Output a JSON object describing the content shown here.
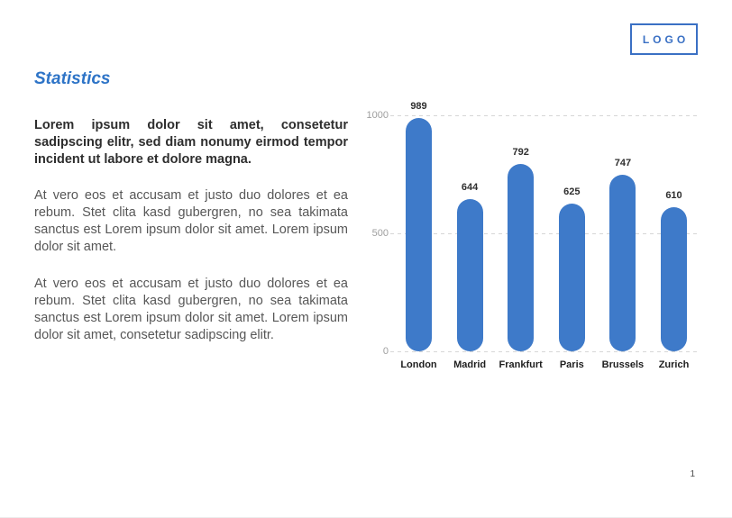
{
  "slide": {
    "title": "Statistics",
    "logo_text": "LOGO",
    "page_number": "1",
    "paragraphs": {
      "lead": "Lorem ipsum dolor sit amet, consetetur sadipscing elitr, sed diam nonumy eirmod tempor incident ut labore et dolore magna.",
      "body_1": "At vero eos et accusam et justo duo dolores et ea rebum. Stet clita kasd gubergren, no sea takimata sanctus est Lorem ipsum dolor sit amet. Lorem ipsum dolor sit amet.",
      "body_2": "At vero eos et accusam et justo duo dolores et ea rebum. Stet clita kasd gubergren, no sea takimata sanctus est Lorem ipsum dolor sit amet. Lorem ipsum dolor sit amet, consetetur sadipscing elitr."
    },
    "colors": {
      "accent_blue": "#2e74c7",
      "logo_blue": "#3a70c4",
      "bar_blue": "#3e7ac9",
      "grid_line": "#d6d6d6",
      "tick_label": "#9e9e9e"
    }
  },
  "chart_data": {
    "type": "bar",
    "title": "",
    "categories": [
      "London",
      "Madrid",
      "Frankfurt",
      "Paris",
      "Brussels",
      "Zurich"
    ],
    "values": [
      989,
      644,
      792,
      625,
      747,
      610
    ],
    "xlabel": "",
    "ylabel": "",
    "ylim": [
      0,
      1000
    ],
    "yticks": [
      0,
      500,
      1000
    ],
    "grid": "horizontal-dashed",
    "legend": "none",
    "bar_color": "#3e7ac9",
    "bar_style": "rounded-stadium",
    "value_labels": "above-bars"
  }
}
